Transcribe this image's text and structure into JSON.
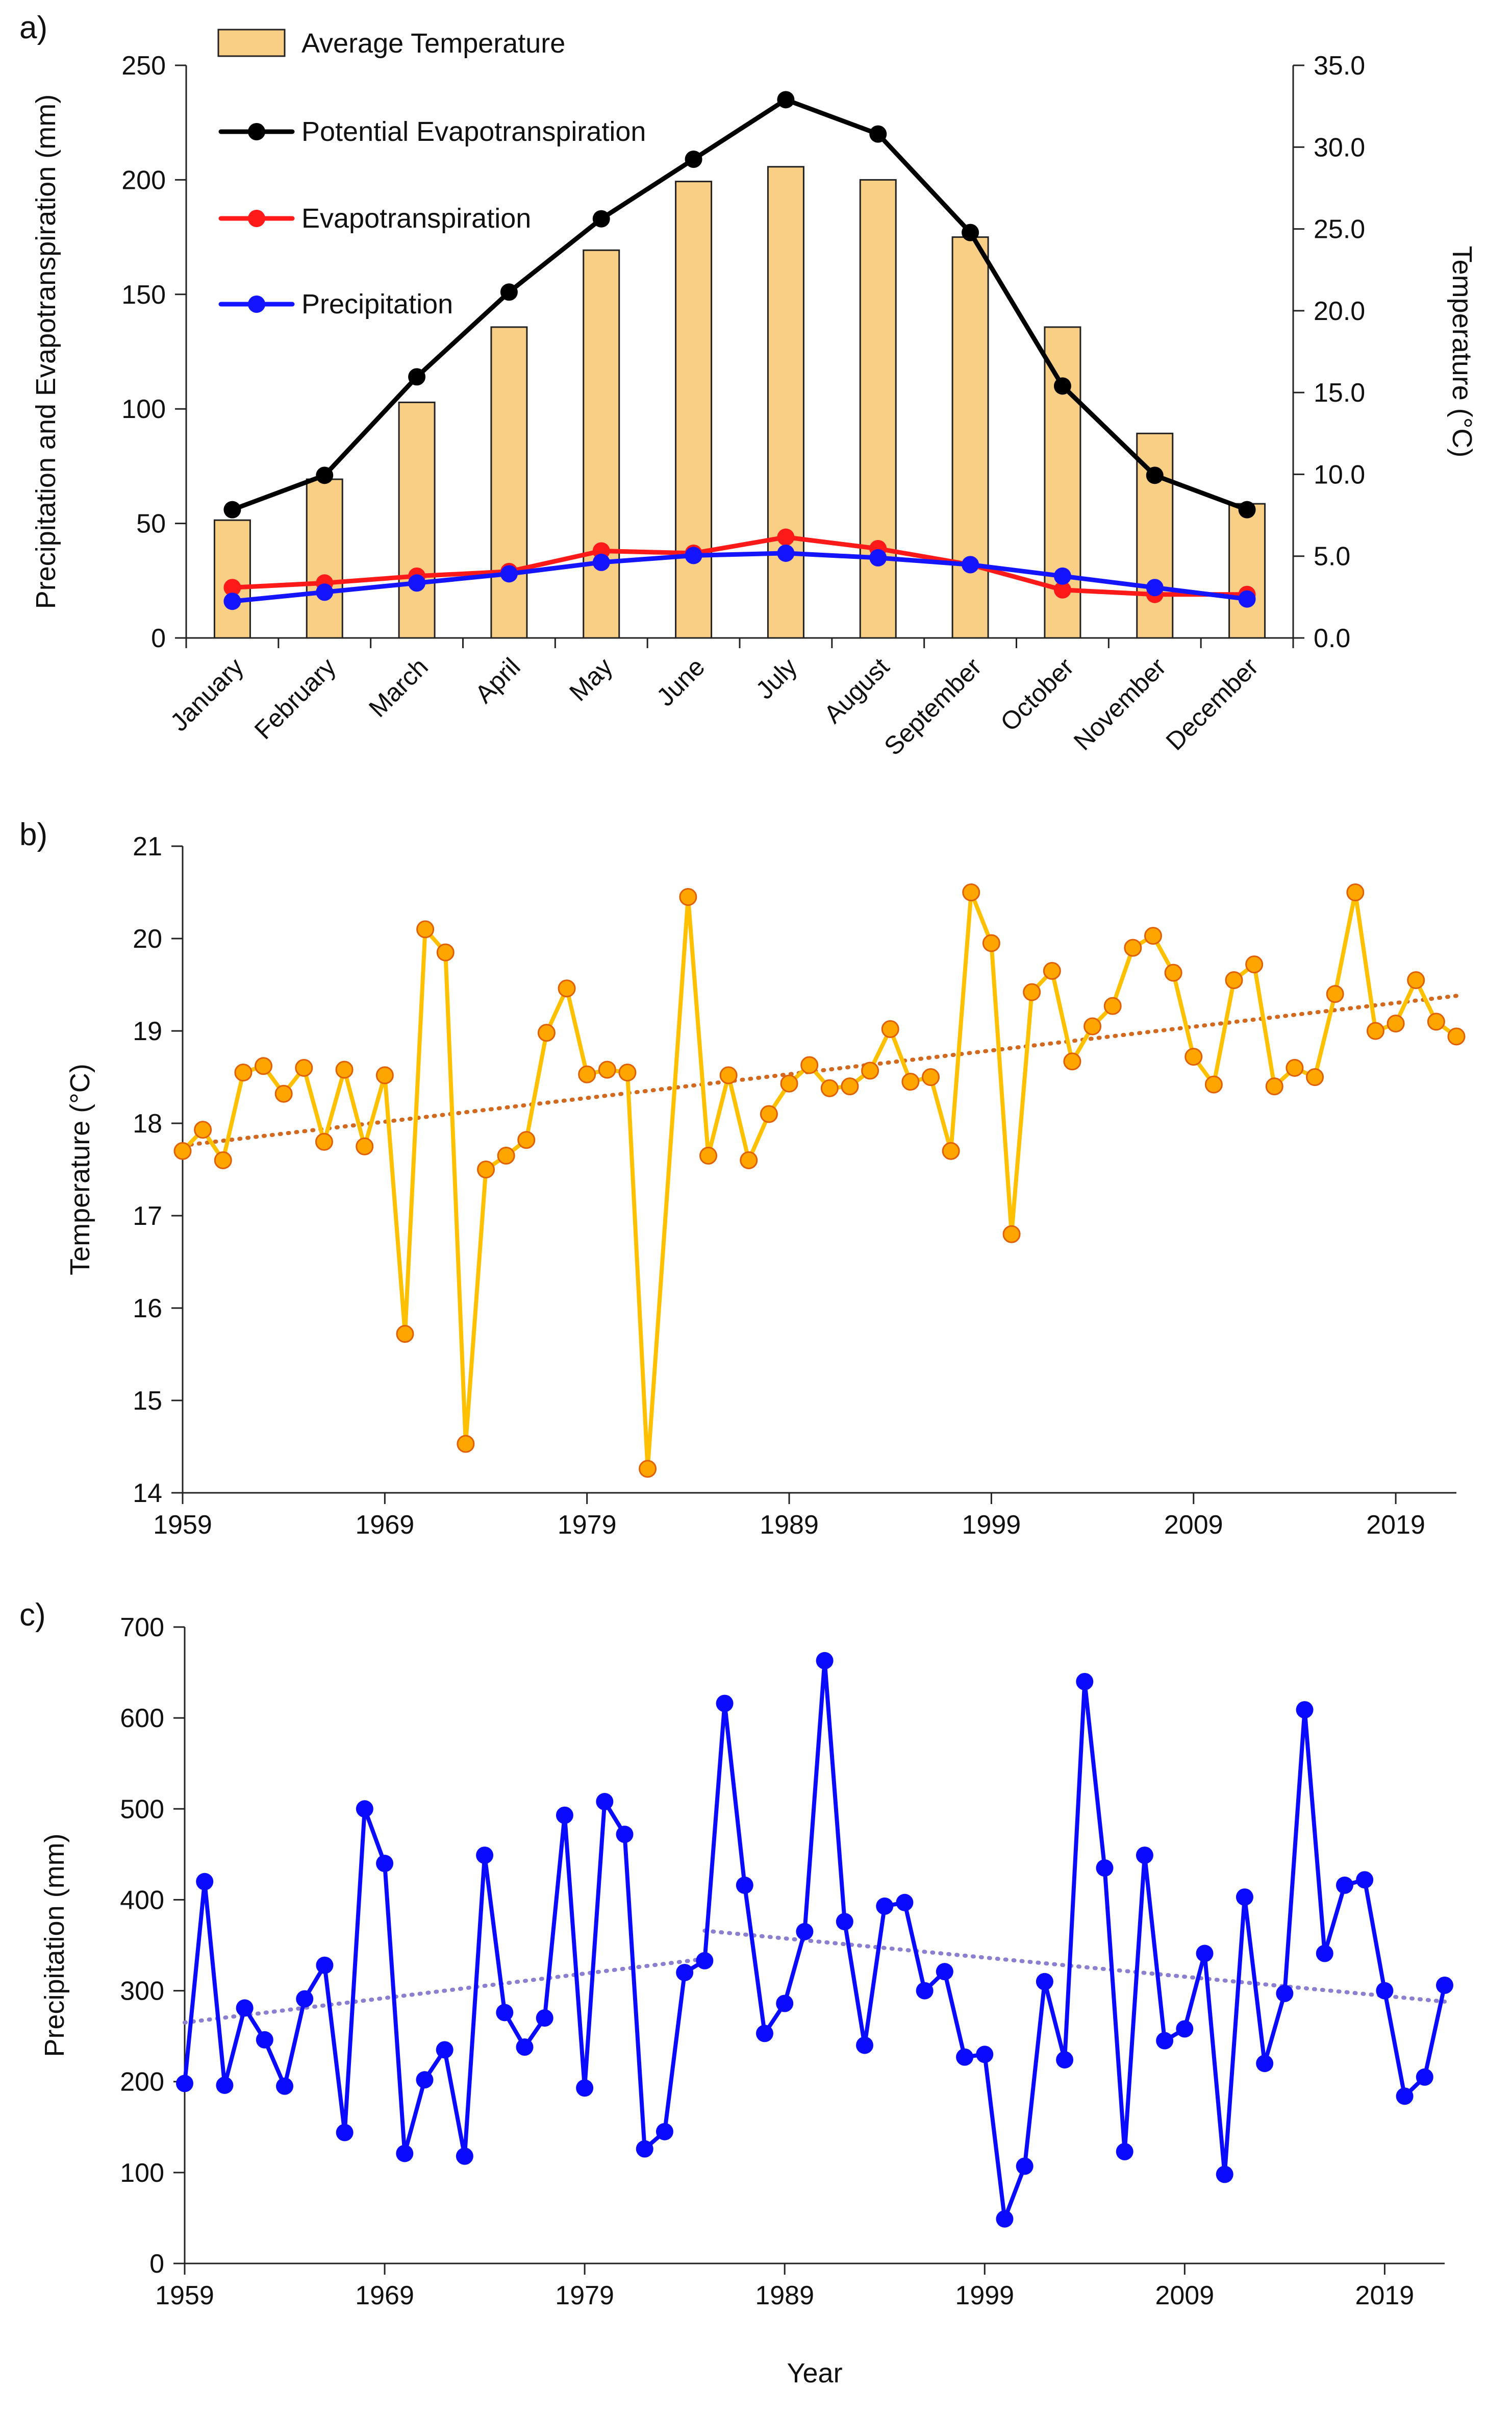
{
  "figure": {
    "panel_labels": [
      "a)",
      "b)",
      "c)"
    ]
  },
  "chart_data": [
    {
      "panel": "a)",
      "type": "bar+line",
      "categories": [
        "January",
        "February",
        "March",
        "April",
        "May",
        "June",
        "July",
        "August",
        "September",
        "October",
        "November",
        "December"
      ],
      "bar_series": {
        "name": "Average Temperature",
        "axis": "right",
        "color": "#f9cf86",
        "stroke": "#222222",
        "values": [
          7.2,
          9.7,
          14.4,
          19.0,
          23.7,
          27.9,
          28.8,
          28.0,
          24.5,
          19.0,
          12.5,
          8.2
        ]
      },
      "series": [
        {
          "name": "Potential Evapotranspiration",
          "color": "#000000",
          "values": [
            56,
            71,
            114,
            151,
            183,
            209,
            235,
            220,
            177,
            110,
            71,
            56
          ]
        },
        {
          "name": "Evapotranspiration",
          "color": "#ff1a1a",
          "values": [
            22,
            24,
            27,
            29,
            38,
            37,
            44,
            39,
            32,
            21,
            19,
            19
          ]
        },
        {
          "name": "Precipitation",
          "color": "#1414ff",
          "values": [
            16,
            20,
            24,
            28,
            33,
            36,
            37,
            35,
            32,
            27,
            22,
            17
          ]
        }
      ],
      "ylabel_left": "Precipitation and Evapotranspiration (mm)",
      "ylabel_right": "Temperature (°C)",
      "ylim_left": [
        0,
        250
      ],
      "yticks_left": [
        "0",
        "50",
        "100",
        "150",
        "200",
        "250"
      ],
      "ylim_right": [
        0,
        35
      ],
      "yticks_right": [
        "0.0",
        "5.0",
        "10.0",
        "15.0",
        "20.0",
        "25.0",
        "30.0",
        "35.0"
      ],
      "legend": [
        "Average Temperature",
        "Potential Evapotranspiration",
        "Evapotranspiration",
        "Precipitation"
      ],
      "legend_position": "top-left"
    },
    {
      "panel": "b)",
      "type": "line",
      "series": [
        {
          "name": "Temperature",
          "color": "#ffc000",
          "marker_color": "#ffa500",
          "marker_edge": "#e06000",
          "x": [
            1959,
            1960,
            1961,
            1962,
            1963,
            1964,
            1965,
            1966,
            1967,
            1968,
            1969,
            1970,
            1971,
            1972,
            1973,
            1974,
            1975,
            1976,
            1977,
            1978,
            1979,
            1980,
            1981,
            1982,
            1984,
            1985,
            1986,
            1987,
            1988,
            1989,
            1990,
            1991,
            1992,
            1993,
            1994,
            1995,
            1996,
            1997,
            1998,
            1999,
            2000,
            2001,
            2002,
            2003,
            2004,
            2005,
            2006,
            2007,
            2008,
            2009,
            2010,
            2011,
            2012,
            2013,
            2014,
            2015,
            2016,
            2017,
            2018,
            2019,
            2020,
            2021,
            2022
          ],
          "y": [
            17.7,
            17.93,
            17.6,
            18.55,
            18.62,
            18.32,
            18.6,
            17.8,
            18.58,
            17.75,
            18.52,
            15.72,
            20.1,
            19.85,
            14.53,
            17.5,
            17.65,
            17.82,
            18.98,
            19.46,
            18.53,
            18.58,
            18.55,
            14.26,
            20.45,
            17.65,
            18.52,
            17.6,
            18.1,
            18.43,
            18.63,
            18.38,
            18.4,
            18.57,
            19.02,
            18.45,
            18.5,
            17.7,
            20.5,
            19.95,
            16.8,
            19.42,
            19.65,
            18.67,
            19.05,
            19.27,
            19.9,
            20.03,
            19.63,
            18.72,
            18.42,
            19.55,
            19.72,
            18.4,
            18.6,
            18.5,
            19.4,
            20.5,
            19.0,
            19.08,
            19.55,
            19.1,
            18.94
          ]
        }
      ],
      "trendline": {
        "style": "dotted",
        "color": "#d2691e",
        "x": [
          1959,
          2022
        ],
        "y": [
          17.76,
          19.38
        ]
      },
      "ylabel": "Temperature (°C)",
      "xticks": [
        "1959",
        "1969",
        "1979",
        "1989",
        "1999",
        "2009",
        "2019"
      ],
      "yticks": [
        "14",
        "15",
        "16",
        "17",
        "18",
        "19",
        "20",
        "21"
      ],
      "xlim": [
        1959,
        2022
      ],
      "ylim": [
        14,
        21
      ]
    },
    {
      "panel": "c)",
      "type": "line",
      "series": [
        {
          "name": "Precipitation",
          "color": "#0a0aff",
          "x": [
            1959,
            1960,
            1961,
            1962,
            1963,
            1964,
            1965,
            1966,
            1967,
            1968,
            1969,
            1970,
            1971,
            1972,
            1973,
            1974,
            1975,
            1976,
            1977,
            1978,
            1979,
            1980,
            1981,
            1982,
            1983,
            1984,
            1985,
            1986,
            1987,
            1988,
            1989,
            1990,
            1991,
            1992,
            1993,
            1994,
            1995,
            1996,
            1997,
            1998,
            1999,
            2000,
            2001,
            2002,
            2003,
            2004,
            2005,
            2006,
            2007,
            2008,
            2009,
            2010,
            2011,
            2012,
            2013,
            2014,
            2015,
            2016,
            2017,
            2018,
            2019,
            2020,
            2021,
            2022
          ],
          "y": [
            198,
            420,
            196,
            281,
            246,
            195,
            291,
            328,
            144,
            500,
            440,
            121,
            202,
            235,
            118,
            449,
            276,
            238,
            270,
            493,
            193,
            508,
            472,
            126,
            145,
            320,
            333,
            616,
            416,
            253,
            286,
            365,
            663,
            376,
            240,
            393,
            397,
            300,
            321,
            227,
            230,
            49,
            107,
            310,
            224,
            640,
            435,
            123,
            449,
            245,
            258,
            341,
            98,
            403,
            220,
            297,
            609,
            341,
            416,
            422,
            300,
            184,
            205,
            306
          ]
        }
      ],
      "trendlines": [
        {
          "style": "dotted",
          "color": "#8b7fd0",
          "x": [
            1959,
            1985
          ],
          "y": [
            265,
            335
          ]
        },
        {
          "style": "dotted",
          "color": "#8b7fd0",
          "x": [
            1985,
            2022
          ],
          "y": [
            366,
            288
          ]
        }
      ],
      "xlabel": "Year",
      "ylabel": "Precipitation (mm)",
      "xticks": [
        "1959",
        "1969",
        "1979",
        "1989",
        "1999",
        "2009",
        "2019"
      ],
      "yticks": [
        "0",
        "100",
        "200",
        "300",
        "400",
        "500",
        "600",
        "700"
      ],
      "xlim": [
        1959,
        2022
      ],
      "ylim": [
        0,
        700
      ]
    }
  ]
}
